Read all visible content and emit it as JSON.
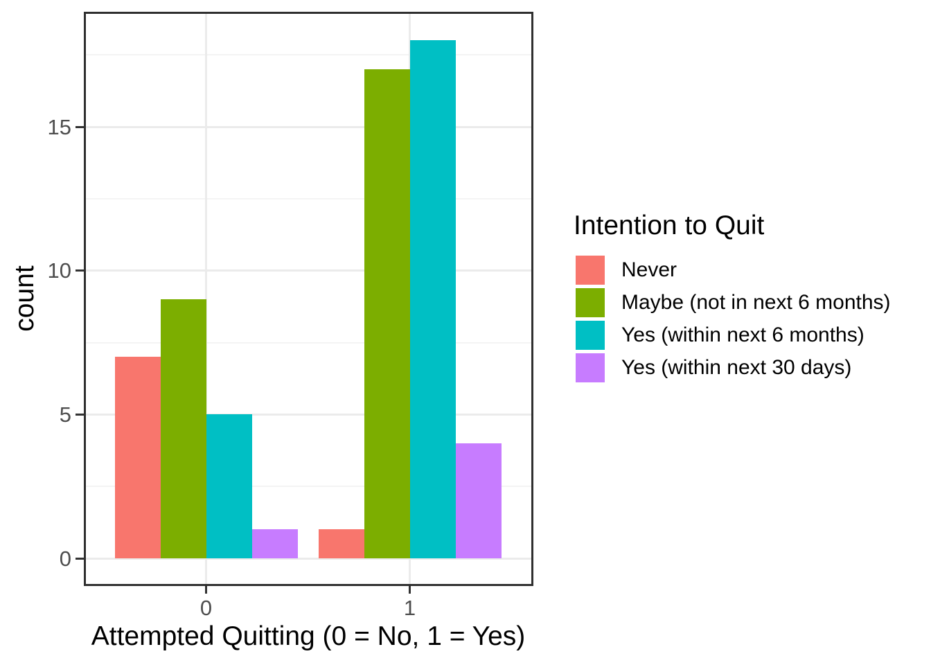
{
  "chart_data": {
    "type": "bar",
    "subtype": "grouped-dodged",
    "title": "",
    "xlabel": "Attempted Quitting (0 = No, 1 = Yes)",
    "ylabel": "count",
    "categories": [
      "0",
      "1"
    ],
    "series": [
      {
        "name": "Never",
        "color": "#F8766D",
        "values": [
          7,
          1
        ]
      },
      {
        "name": "Maybe (not in next 6 months)",
        "color": "#7CAE00",
        "values": [
          9,
          17
        ]
      },
      {
        "name": "Yes (within next 6 months)",
        "color": "#00BFC4",
        "values": [
          5,
          18
        ]
      },
      {
        "name": "Yes (within next 30 days)",
        "color": "#C77CFF",
        "values": [
          1,
          4
        ]
      }
    ],
    "legend": {
      "title": "Intention to Quit",
      "position": "right"
    },
    "y_axis": {
      "ticks": [
        0,
        5,
        10,
        15
      ],
      "tick_labels": [
        "0",
        "5",
        "10",
        "15"
      ],
      "minor_ticks": [
        2.5,
        7.5,
        12.5,
        17.5
      ],
      "ylim": [
        -0.9,
        18.9
      ]
    },
    "x_axis": {
      "tick_labels": [
        "0",
        "1"
      ]
    },
    "grid": true,
    "panel_border_color": "#2f2f2f",
    "gridline_color": "#ebebeb",
    "axis_text_color": "#4d4d4d"
  }
}
